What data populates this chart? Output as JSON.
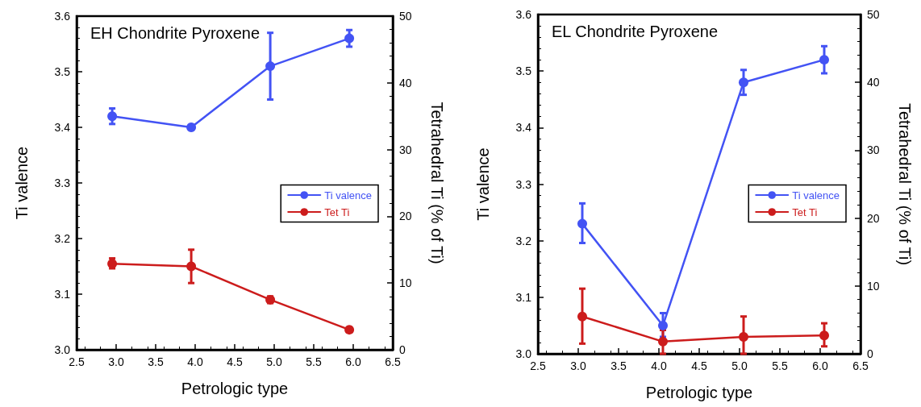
{
  "chart_data": [
    {
      "type": "line",
      "title": "EH Chondrite Pyroxene",
      "xlabel": "Petrologic type",
      "ylabel": "Ti valence",
      "y2label": "Tetrahedral Ti (% of Ti)",
      "x": [
        2.95,
        3.95,
        4.95,
        5.95
      ],
      "series": [
        {
          "name": "Ti valence",
          "color": "#4353f4",
          "values": [
            3.42,
            3.4,
            3.51,
            3.56
          ],
          "errors": [
            0.014,
            null,
            0.06,
            0.015
          ]
        },
        {
          "name": "Tet Ti",
          "color": "#cc1c1c",
          "axis": "y2",
          "values": [
            12.9,
            12.5,
            7.5,
            3.0
          ],
          "errors": [
            [
              12.2,
              13.7
            ],
            [
              10,
              15
            ],
            0.5,
            null
          ]
        }
      ],
      "xlim": [
        2.5,
        6.5
      ],
      "xticks": [
        2.5,
        {
          "value": 3,
          "label": "3.0"
        },
        3.5,
        {
          "value": 4,
          "label": "4.0"
        },
        4.5,
        {
          "value": 5,
          "label": "5.0"
        },
        5.5,
        {
          "value": 6,
          "label": "6.0"
        },
        6.5
      ],
      "ylim": [
        3.0,
        3.6
      ],
      "yticks": [
        {
          "value": 3,
          "label": "3.0"
        },
        3.1,
        3.2,
        3.3,
        3.4,
        3.5,
        3.6
      ],
      "y2lim": [
        0,
        50
      ],
      "y2ticks": [
        0,
        10,
        20,
        30,
        40,
        50
      ],
      "legend": "right",
      "marker": "circle",
      "line_style": "solid",
      "grid": false
    },
    {
      "type": "line",
      "title": "EL Chondrite Pyroxene",
      "xlabel": "Petrologic type",
      "ylabel": "Ti valence",
      "y2label": "Tetrahedral Ti (% of Ti)",
      "x": [
        3.05,
        4.05,
        5.05,
        6.05
      ],
      "series": [
        {
          "name": "Ti valence",
          "color": "#4353f4",
          "values": [
            3.23,
            3.05,
            3.48,
            3.52
          ],
          "errors": [
            [
              3.196,
              3.266
            ],
            [
              3.03,
              3.072
            ],
            [
              3.458,
              3.502
            ],
            [
              3.496,
              3.544
            ]
          ]
        },
        {
          "name": "Tet Ti",
          "color": "#cc1c1c",
          "axis": "y2",
          "values": [
            5.5,
            1.8,
            2.5,
            2.7
          ],
          "errors": [
            [
              1.5,
              9.6
            ],
            [
              0,
              3.5
            ],
            [
              0,
              5.5
            ],
            [
              1.1,
              4.5
            ]
          ]
        }
      ],
      "xlim": [
        2.5,
        6.5
      ],
      "xticks": [
        2.5,
        {
          "value": 3,
          "label": "3.0"
        },
        3.5,
        {
          "value": 4,
          "label": "4.0"
        },
        4.5,
        {
          "value": 5,
          "label": "5.0"
        },
        5.5,
        {
          "value": 6,
          "label": "6.0"
        },
        6.5
      ],
      "ylim": [
        3.0,
        3.6
      ],
      "yticks": [
        {
          "value": 3,
          "label": "3.0"
        },
        3.1,
        3.2,
        3.3,
        3.4,
        3.5,
        3.6
      ],
      "y2lim": [
        0,
        50
      ],
      "y2ticks": [
        0,
        10,
        20,
        30,
        40,
        50
      ],
      "legend": "right",
      "marker": "circle",
      "line_style": "solid",
      "grid": false
    }
  ]
}
